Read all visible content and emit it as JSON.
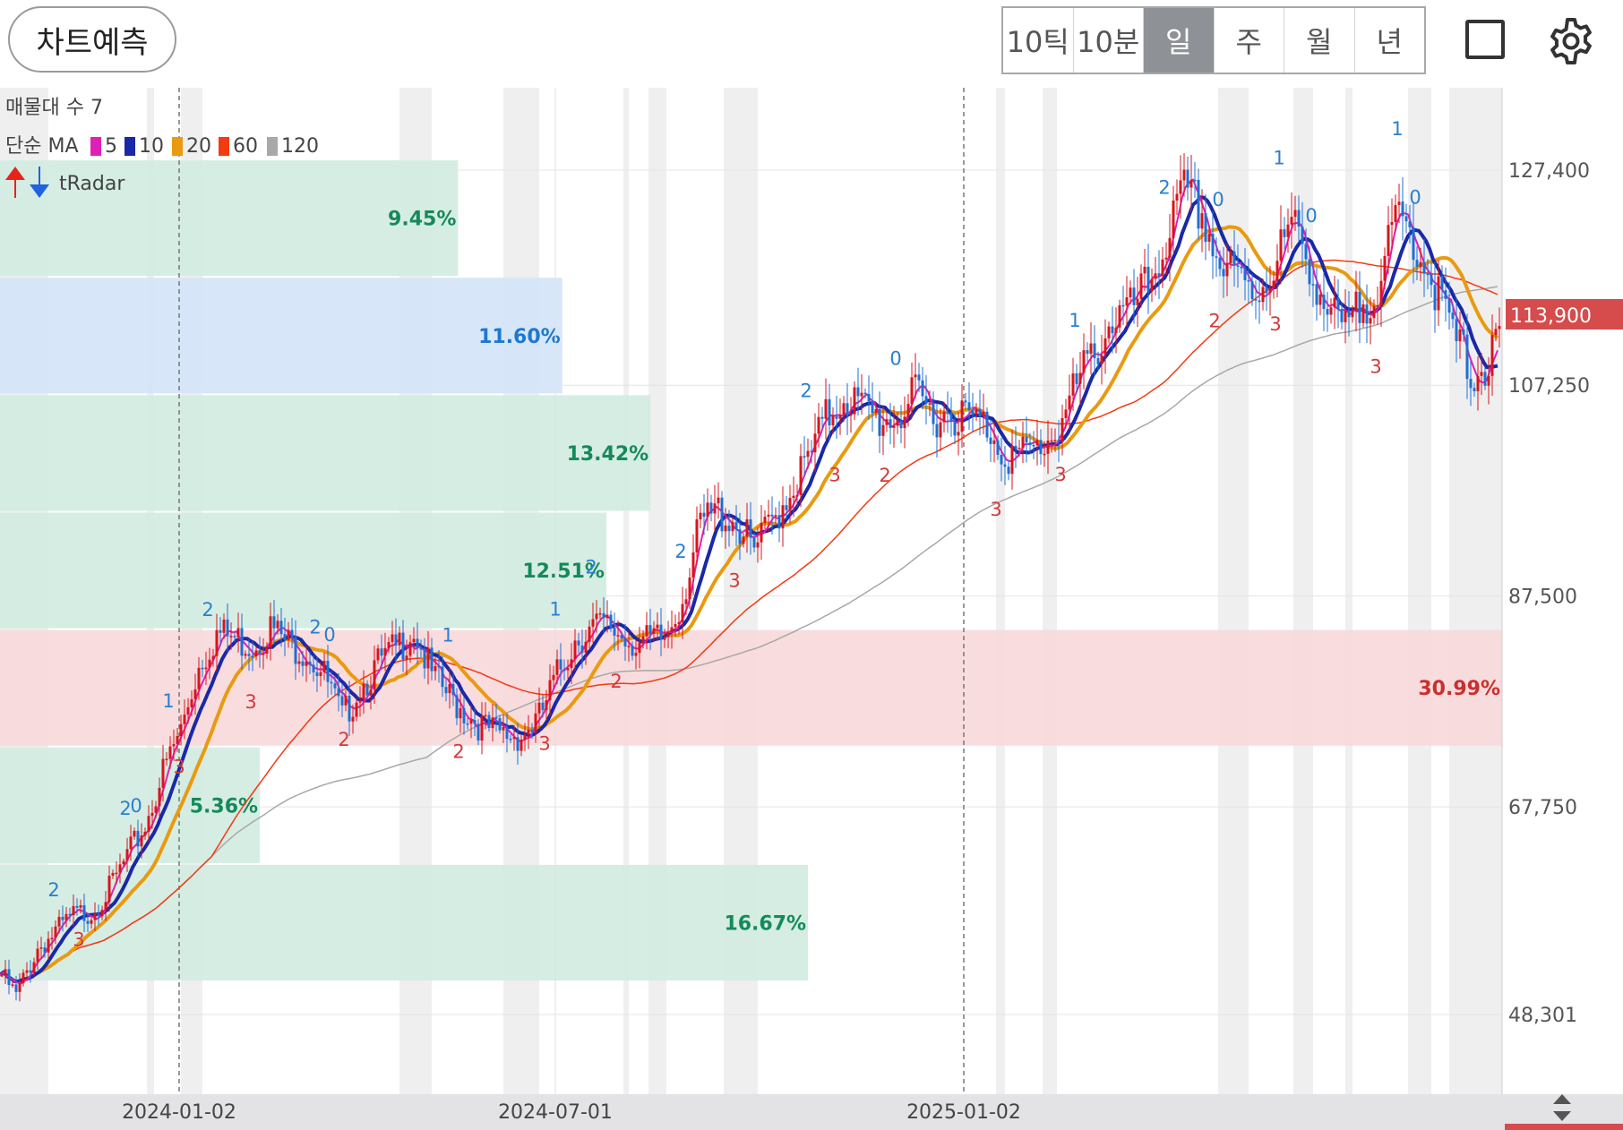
{
  "toolbar": {
    "predict_label": "차트예측",
    "tabs": [
      "10틱",
      "10분",
      "일",
      "주",
      "월",
      "년"
    ],
    "active_tab": 2,
    "fullscreen_icon": "square-outline-icon",
    "settings_icon": "gear-icon"
  },
  "legend": {
    "volume_profile": "매물대 수 7",
    "ma_title": "단순 MA",
    "ma_periods": [
      {
        "label": "5",
        "color": "#e21fb5"
      },
      {
        "label": "10",
        "color": "#1a28a8"
      },
      {
        "label": "20",
        "color": "#e99a10"
      },
      {
        "label": "60",
        "color": "#f33a10"
      },
      {
        "label": "120",
        "color": "#a8a8a8"
      }
    ],
    "radar": "tRadar",
    "radar_icons": [
      "red-up-arrow-icon",
      "blue-down-arrow-icon"
    ]
  },
  "chart_data": {
    "type": "candlestick",
    "y_axis_ticks": [
      "127,400",
      "107,250",
      "87,500",
      "67,750",
      "48,301"
    ],
    "y_tick_values": [
      127400,
      107250,
      87500,
      67750,
      48301
    ],
    "x_axis_labels": [
      "2024-01-02",
      "2024-07-01",
      "2025-01-02"
    ],
    "current_price": "113,900",
    "price_colors": {
      "up": "#d6161d",
      "down": "#1d6fd4"
    },
    "volume_profile": [
      {
        "low": 117400,
        "high": 128400,
        "percent": "9.45%",
        "share": 9.45,
        "color": "green"
      },
      {
        "low": 106400,
        "high": 117400,
        "percent": "11.60%",
        "share": 11.6,
        "color": "blue"
      },
      {
        "low": 95400,
        "high": 106400,
        "percent": "13.42%",
        "share": 13.42,
        "color": "green"
      },
      {
        "low": 84400,
        "high": 95400,
        "percent": "12.51%",
        "share": 12.51,
        "color": "green"
      },
      {
        "low": 73400,
        "high": 84400,
        "percent": "30.99%",
        "share": 30.99,
        "color": "red"
      },
      {
        "low": 62400,
        "high": 73400,
        "percent": "5.36%",
        "share": 5.36,
        "color": "green"
      },
      {
        "low": 51400,
        "high": 62400,
        "percent": "16.67%",
        "share": 16.67,
        "color": "green"
      }
    ],
    "price_path": [
      [
        0,
        52000
      ],
      [
        4,
        50000
      ],
      [
        10,
        54500
      ],
      [
        15,
        56000
      ],
      [
        20,
        57500
      ],
      [
        25,
        58000
      ],
      [
        30,
        60000
      ],
      [
        35,
        63000
      ],
      [
        40,
        66000
      ],
      [
        45,
        71000
      ],
      [
        50,
        75000
      ],
      [
        55,
        81000
      ],
      [
        60,
        84000
      ],
      [
        65,
        83500
      ],
      [
        70,
        83000
      ],
      [
        75,
        84500
      ],
      [
        80,
        83000
      ],
      [
        85,
        82500
      ],
      [
        90,
        80000
      ],
      [
        95,
        76000
      ],
      [
        100,
        79000
      ],
      [
        105,
        81000
      ],
      [
        110,
        82500
      ],
      [
        115,
        84500
      ],
      [
        120,
        80000
      ],
      [
        125,
        78000
      ],
      [
        130,
        76500
      ],
      [
        135,
        75000
      ],
      [
        140,
        74500
      ],
      [
        145,
        74500
      ],
      [
        150,
        76000
      ],
      [
        155,
        80000
      ],
      [
        160,
        83500
      ],
      [
        165,
        84500
      ],
      [
        170,
        84500
      ],
      [
        175,
        83500
      ],
      [
        180,
        83000
      ],
      [
        185,
        83500
      ],
      [
        190,
        87500
      ],
      [
        195,
        94000
      ],
      [
        200,
        95500
      ],
      [
        205,
        94500
      ],
      [
        210,
        91500
      ],
      [
        215,
        94500
      ],
      [
        220,
        97500
      ],
      [
        225,
        100000
      ],
      [
        230,
        104000
      ],
      [
        235,
        106500
      ],
      [
        240,
        105000
      ],
      [
        245,
        104000
      ],
      [
        250,
        104500
      ],
      [
        255,
        106000
      ],
      [
        260,
        104500
      ],
      [
        265,
        105000
      ],
      [
        270,
        104000
      ],
      [
        275,
        103500
      ],
      [
        280,
        101000
      ],
      [
        285,
        100500
      ],
      [
        290,
        101500
      ],
      [
        295,
        103500
      ],
      [
        300,
        107000
      ],
      [
        305,
        110500
      ],
      [
        310,
        113500
      ],
      [
        315,
        114000
      ],
      [
        320,
        116500
      ],
      [
        325,
        121000
      ],
      [
        330,
        125000
      ],
      [
        335,
        123500
      ],
      [
        340,
        118500
      ],
      [
        345,
        117000
      ],
      [
        350,
        116000
      ],
      [
        355,
        118500
      ],
      [
        360,
        122000
      ],
      [
        365,
        119000
      ],
      [
        370,
        114000
      ],
      [
        375,
        112000
      ],
      [
        380,
        115000
      ],
      [
        385,
        117500
      ],
      [
        390,
        123000
      ],
      [
        395,
        120500
      ],
      [
        400,
        116500
      ],
      [
        405,
        112000
      ],
      [
        410,
        108500
      ],
      [
        415,
        109000
      ],
      [
        418,
        111500
      ]
    ]
  }
}
